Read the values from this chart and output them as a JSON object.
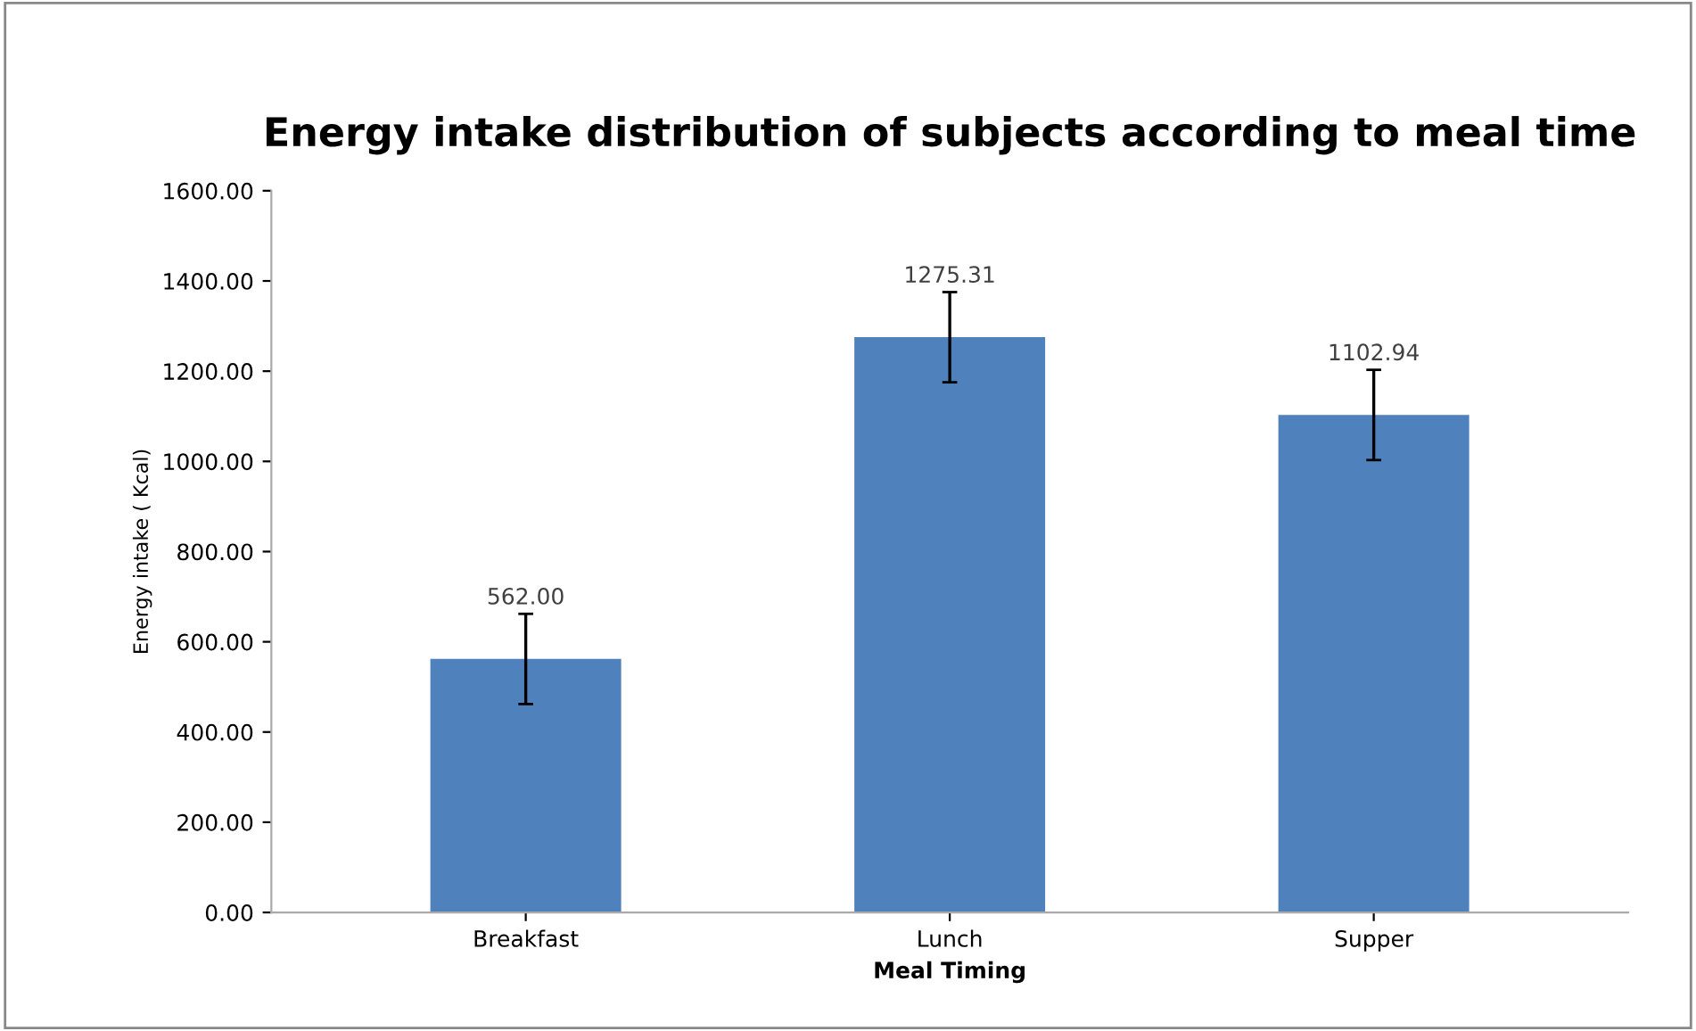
{
  "chart_data": {
    "type": "bar",
    "title": "Energy intake distribution of subjects according to meal time",
    "xlabel": "Meal Timing",
    "ylabel": "Energy intake ( Kcal)",
    "categories": [
      "Breakfast",
      "Lunch",
      "Supper"
    ],
    "values": [
      562.0,
      1275.31,
      1102.94
    ],
    "value_labels": [
      "562.00",
      "1275.31",
      "1102.94"
    ],
    "errors": [
      100,
      100,
      100
    ],
    "color": "#4f81bd",
    "ylim": [
      0,
      1600
    ],
    "yticks": [
      {
        "value": 0,
        "label": "0.00"
      },
      {
        "value": 200,
        "label": "200.00"
      },
      {
        "value": 400,
        "label": "400.00"
      },
      {
        "value": 600,
        "label": "600.00"
      },
      {
        "value": 800,
        "label": "800.00"
      },
      {
        "value": 1000,
        "label": "1000.00"
      },
      {
        "value": 1200,
        "label": "1200.00"
      },
      {
        "value": 1400,
        "label": "1400.00"
      },
      {
        "value": 1600,
        "label": "1600.00"
      }
    ],
    "grid": false,
    "legend": false
  }
}
